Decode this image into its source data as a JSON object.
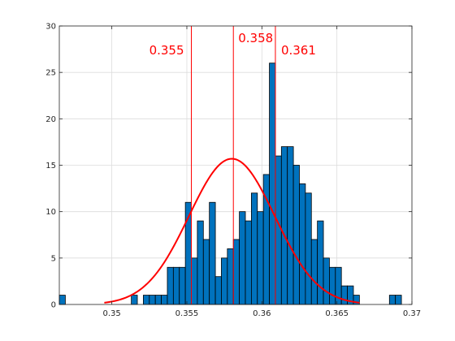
{
  "chart_data": {
    "type": "bar",
    "title": "",
    "xlabel": "",
    "ylabel": "",
    "xlim": [
      0.3465,
      0.37
    ],
    "ylim": [
      0,
      30
    ],
    "grid": true,
    "xticks": [
      "0.35",
      "0.355",
      "0.36",
      "0.365",
      "0.37"
    ],
    "yticks": [
      "0",
      "5",
      "10",
      "15",
      "20",
      "25",
      "30"
    ],
    "bins": {
      "start": 0.3465,
      "width": 0.0004,
      "counts": [
        1,
        0,
        0,
        0,
        0,
        0,
        0,
        0,
        0,
        0,
        0,
        0,
        1,
        0,
        1,
        1,
        1,
        1,
        4,
        4,
        4,
        11,
        5,
        9,
        7,
        11,
        3,
        5,
        6,
        7,
        10,
        9,
        12,
        10,
        14,
        26,
        16,
        17,
        17,
        15,
        13,
        12,
        7,
        9,
        5,
        4,
        4,
        2,
        2,
        1,
        0,
        0,
        0,
        0,
        0,
        1,
        1
      ]
    },
    "bar_color": "#0072bd",
    "fit_curve": {
      "type": "normal",
      "mean": 0.358,
      "std": 0.00286,
      "peak": 15.7,
      "x_range": [
        0.3495,
        0.3665
      ],
      "color": "#ff0000"
    },
    "vlines": [
      {
        "x": 0.3553,
        "label": "0.355"
      },
      {
        "x": 0.3581,
        "label": "0.358"
      },
      {
        "x": 0.3609,
        "label": "0.361"
      }
    ]
  }
}
